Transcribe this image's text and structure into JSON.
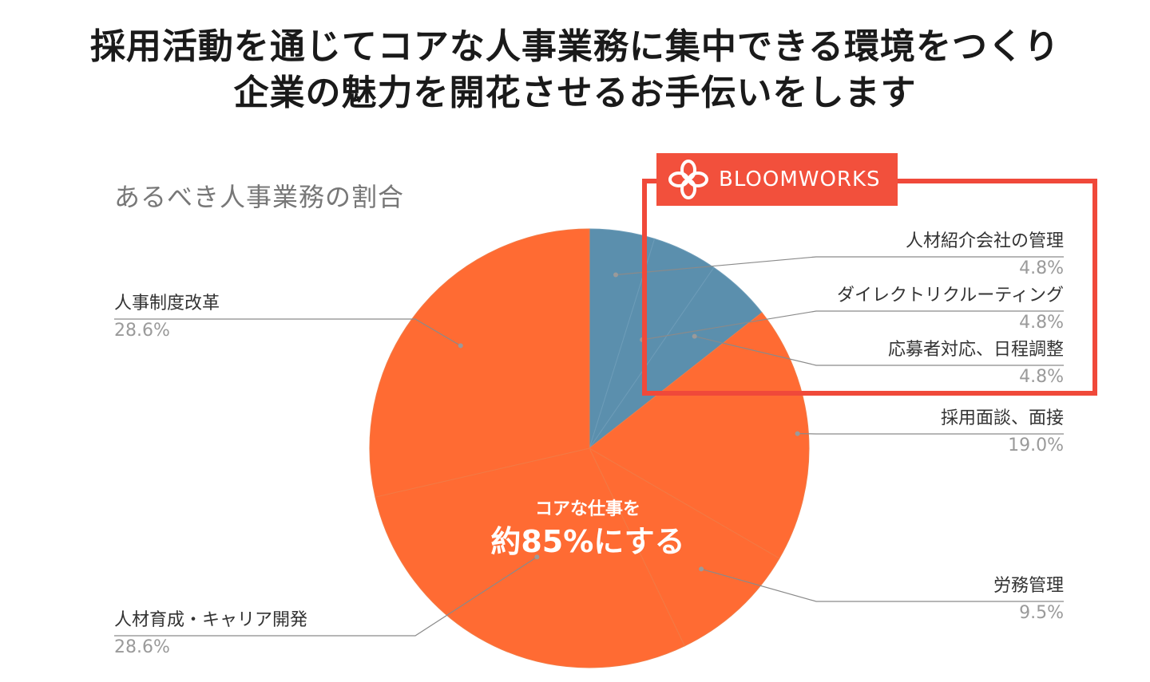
{
  "headline": {
    "line1": "採用活動を通じてコアな人事業務に集中できる環境をつくり",
    "line2": "企業の魅力を開花させるお手伝いをします"
  },
  "brand": {
    "name": "BLOOMWORKS",
    "color": "#f2503c",
    "icon": "flower-logo-icon"
  },
  "center_callout": {
    "line1": "コアな仕事を",
    "line2": "約85%にする"
  },
  "colors": {
    "core": "#ff6b33",
    "non_core": "#5b8fad",
    "highlight": "#f0493a"
  },
  "chart_data": {
    "type": "pie",
    "title": "あるべき人事業務の割合",
    "start": "12 o'clock, clockwise",
    "slices": [
      {
        "label": "人材紹介会社の管理",
        "value": 4.8,
        "value_text": "4.8%",
        "group": "non_core"
      },
      {
        "label": "ダイレクトリクルーティング",
        "value": 4.8,
        "value_text": "4.8%",
        "group": "non_core"
      },
      {
        "label": "応募者対応、日程調整",
        "value": 4.8,
        "value_text": "4.8%",
        "group": "non_core"
      },
      {
        "label": "採用面談、面接",
        "value": 19.0,
        "value_text": "19.0%",
        "group": "core"
      },
      {
        "label": "労務管理",
        "value": 9.5,
        "value_text": "9.5%",
        "group": "core"
      },
      {
        "label": "人材育成・キャリア開発",
        "value": 28.6,
        "value_text": "28.6%",
        "group": "core"
      },
      {
        "label": "人事制度改革",
        "value": 28.6,
        "value_text": "28.6%",
        "group": "core"
      }
    ],
    "legend": "callout labels beside slices",
    "highlighted_slices": [
      "人材紹介会社の管理",
      "ダイレクトリクルーティング",
      "応募者対応、日程調整"
    ]
  }
}
